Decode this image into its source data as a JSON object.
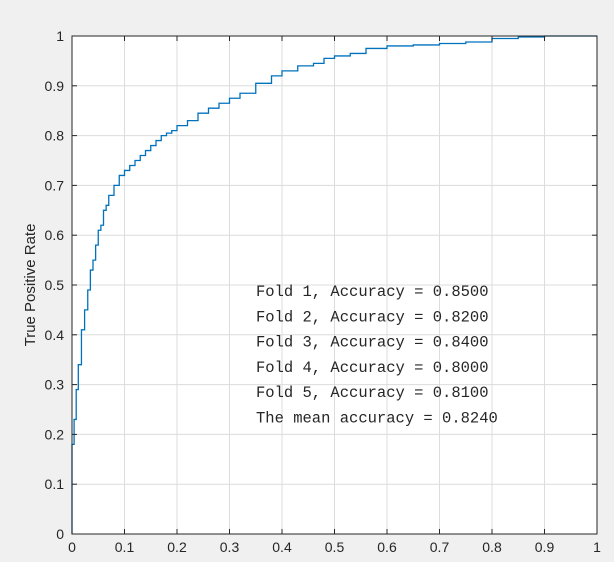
{
  "chart_data": {
    "type": "line",
    "title": "",
    "xlabel": "",
    "ylabel": "True Positive Rate",
    "xlim": [
      0,
      1
    ],
    "ylim": [
      0,
      1
    ],
    "grid": true,
    "x_ticks": [
      "0",
      "0.1",
      "0.2",
      "0.3",
      "0.4",
      "0.5",
      "0.6",
      "0.7",
      "0.8",
      "0.9",
      "1"
    ],
    "y_ticks": [
      "0",
      "0.1",
      "0.2",
      "0.3",
      "0.4",
      "0.5",
      "0.6",
      "0.7",
      "0.8",
      "0.9",
      "1"
    ],
    "series": [
      {
        "color": "#0072bd",
        "x": [
          0,
          0.004,
          0.008,
          0.012,
          0.018,
          0.024,
          0.03,
          0.035,
          0.04,
          0.045,
          0.05,
          0.055,
          0.06,
          0.065,
          0.07,
          0.08,
          0.09,
          0.1,
          0.11,
          0.12,
          0.13,
          0.14,
          0.15,
          0.16,
          0.17,
          0.18,
          0.19,
          0.2,
          0.22,
          0.24,
          0.26,
          0.28,
          0.3,
          0.32,
          0.35,
          0.38,
          0.4,
          0.43,
          0.46,
          0.48,
          0.5,
          0.53,
          0.56,
          0.6,
          0.65,
          0.7,
          0.75,
          0.8,
          0.85,
          0.9,
          0.95,
          1
        ],
        "y": [
          0,
          0.18,
          0.23,
          0.29,
          0.34,
          0.41,
          0.45,
          0.49,
          0.53,
          0.55,
          0.58,
          0.61,
          0.62,
          0.65,
          0.66,
          0.68,
          0.7,
          0.72,
          0.73,
          0.74,
          0.75,
          0.76,
          0.77,
          0.78,
          0.79,
          0.8,
          0.805,
          0.81,
          0.82,
          0.83,
          0.845,
          0.855,
          0.865,
          0.875,
          0.885,
          0.905,
          0.92,
          0.93,
          0.94,
          0.945,
          0.955,
          0.96,
          0.965,
          0.975,
          0.98,
          0.982,
          0.985,
          0.988,
          0.995,
          0.998,
          1.0,
          1.0
        ]
      }
    ],
    "annotations": [
      "Fold 1, Accuracy = 0.8500",
      "Fold 2, Accuracy = 0.8200",
      "Fold 3, Accuracy = 0.8400",
      "Fold 4, Accuracy = 0.8000",
      "Fold 5, Accuracy = 0.8100",
      "The mean accuracy = 0.8240"
    ]
  }
}
